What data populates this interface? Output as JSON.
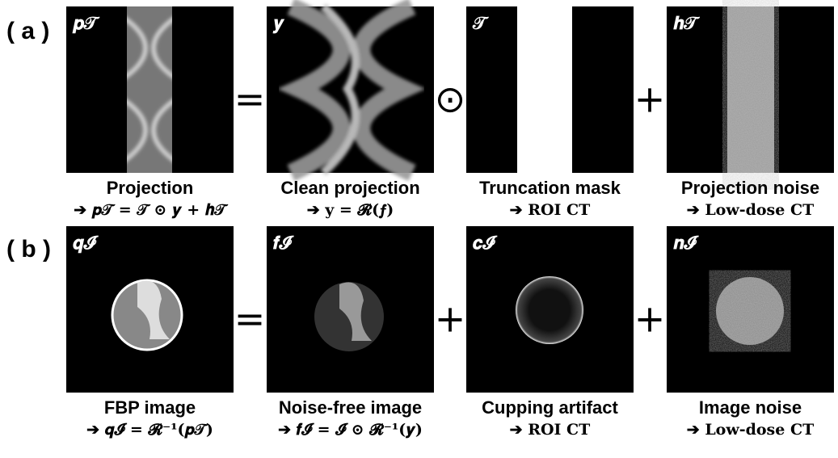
{
  "rows": [
    {
      "tag": "( a )",
      "operators": [
        "=",
        "⊙",
        "+"
      ],
      "panels": [
        {
          "label": "𝒑𝒯",
          "caption": "Projection",
          "formula": "➔ 𝒑𝒯 = 𝒯 ⊙ 𝒚 + 𝒉𝒯"
        },
        {
          "label": "𝒚",
          "caption": "Clean projection",
          "formula": "➔ 𝐲 = 𝓡(𝒇)"
        },
        {
          "label": "𝒯",
          "caption": "Truncation mask",
          "formula": "➔ ROI CT"
        },
        {
          "label": "𝒉𝒯",
          "caption": "Projection noise",
          "formula": "➔ Low-dose CT"
        }
      ]
    },
    {
      "tag": "( b )",
      "operators": [
        "=",
        "+",
        "+"
      ],
      "panels": [
        {
          "label": "𝒒𝓘",
          "caption": "FBP image",
          "formula": "➔ 𝒒𝓘 = 𝓡⁻¹(𝒑𝒯)"
        },
        {
          "label": "𝒇𝓘",
          "caption": "Noise-free image",
          "formula": "➔ 𝒇𝓘 = 𝓘 ⊙ 𝓡⁻¹(𝒚)"
        },
        {
          "label": "𝒄𝓘",
          "caption": "Cupping artifact",
          "formula": "➔ ROI CT"
        },
        {
          "label": "𝒏𝓘",
          "caption": "Image noise",
          "formula": "➔ Low-dose CT"
        }
      ]
    }
  ]
}
